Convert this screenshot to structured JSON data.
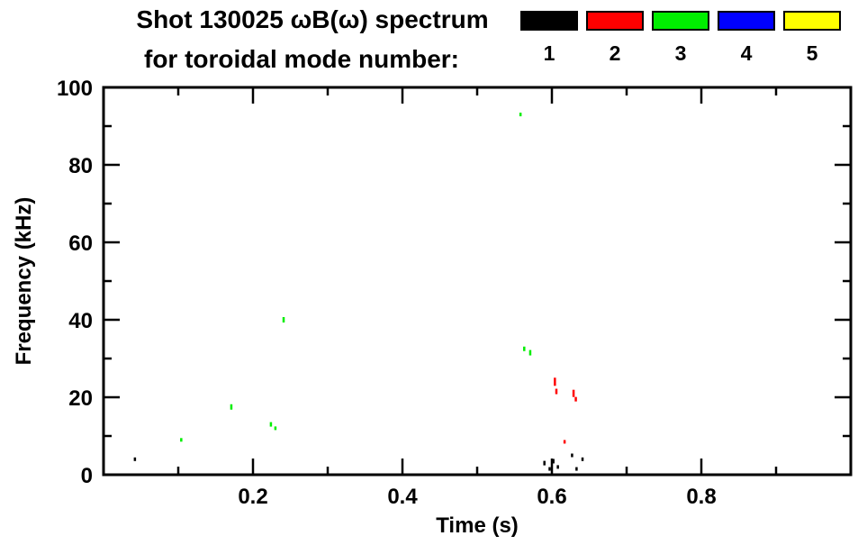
{
  "title": {
    "line1": "Shot 130025 ωB(ω) spectrum",
    "line2": "for toroidal mode number:"
  },
  "legend": {
    "modes": [
      {
        "label": "1",
        "color": "#000000"
      },
      {
        "label": "2",
        "color": "#ff0000"
      },
      {
        "label": "3",
        "color": "#00ee00"
      },
      {
        "label": "4",
        "color": "#0000ff"
      },
      {
        "label": "5",
        "color": "#ffff00"
      }
    ]
  },
  "chart_data": {
    "type": "scatter",
    "title": "Shot 130025 ωB(ω) spectrum for toroidal mode number: 1 2 3 4 5",
    "xlabel": "Time (s)",
    "ylabel": "Frequency (kHz)",
    "xlim": [
      0,
      1.0
    ],
    "ylim": [
      0,
      100
    ],
    "x_major_ticks": [
      0.2,
      0.4,
      0.6,
      0.8
    ],
    "x_tick_labels": [
      "0.2",
      "0.4",
      "0.6",
      "0.8"
    ],
    "x_minor_step": 0.1,
    "y_major_ticks": [
      0,
      20,
      40,
      60,
      80,
      100
    ],
    "y_tick_labels": [
      "0",
      "20",
      "40",
      "60",
      "80",
      "100"
    ],
    "y_minor_step": 10,
    "grid": false,
    "legend_position": "top-right",
    "series": [
      {
        "name": "toroidal mode n=1",
        "mode": "1",
        "color": "#000000",
        "points": [
          [
            0.042,
            4,
            4
          ],
          [
            0.59,
            3,
            5
          ],
          [
            0.597,
            1.5,
            4
          ],
          [
            0.602,
            3.5,
            5
          ],
          [
            0.608,
            2,
            4
          ],
          [
            0.627,
            5,
            4
          ],
          [
            0.633,
            1.5,
            4
          ],
          [
            0.641,
            4,
            4
          ]
        ]
      },
      {
        "name": "toroidal mode n=2",
        "mode": "2",
        "color": "#ff0000",
        "points": [
          [
            0.604,
            24,
            9
          ],
          [
            0.606,
            21.5,
            6
          ],
          [
            0.617,
            8.5,
            4
          ],
          [
            0.629,
            21,
            8
          ],
          [
            0.632,
            19.5,
            5
          ]
        ]
      },
      {
        "name": "toroidal mode n=3",
        "mode": "3",
        "color": "#00ee00",
        "points": [
          [
            0.104,
            9,
            4
          ],
          [
            0.171,
            17.5,
            6
          ],
          [
            0.224,
            13,
            5
          ],
          [
            0.23,
            12,
            4
          ],
          [
            0.241,
            40,
            6
          ],
          [
            0.558,
            93,
            4
          ],
          [
            0.563,
            32.5,
            5
          ],
          [
            0.571,
            31.5,
            6
          ]
        ]
      },
      {
        "name": "toroidal mode n=4",
        "mode": "4",
        "color": "#0000ff",
        "points": []
      },
      {
        "name": "toroidal mode n=5",
        "mode": "5",
        "color": "#ffff00",
        "points": []
      }
    ]
  }
}
